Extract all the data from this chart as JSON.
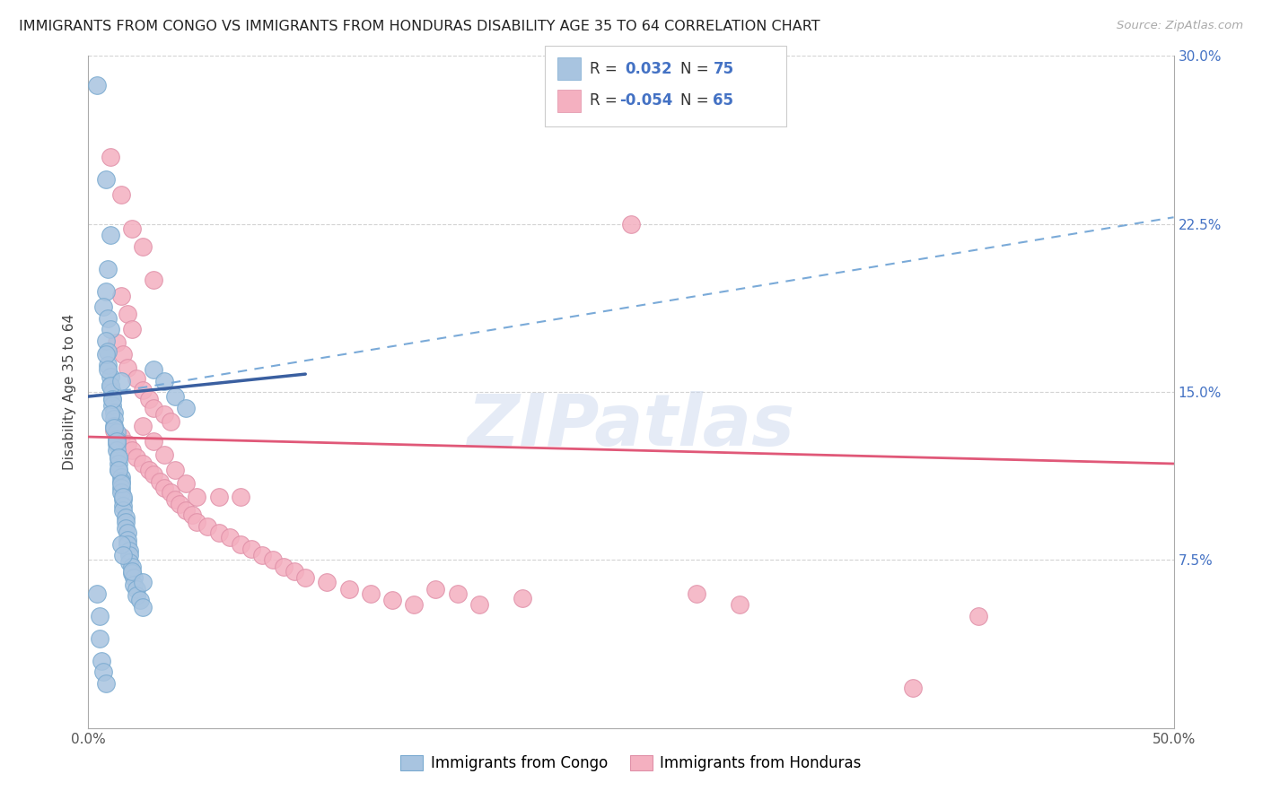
{
  "title": "IMMIGRANTS FROM CONGO VS IMMIGRANTS FROM HONDURAS DISABILITY AGE 35 TO 64 CORRELATION CHART",
  "source": "Source: ZipAtlas.com",
  "ylabel": "Disability Age 35 to 64",
  "xlim": [
    0.0,
    0.5
  ],
  "ylim": [
    0.0,
    0.3
  ],
  "xticks": [
    0.0,
    0.1,
    0.2,
    0.3,
    0.4,
    0.5
  ],
  "yticks": [
    0.0,
    0.075,
    0.15,
    0.225,
    0.3
  ],
  "xticklabels": [
    "0.0%",
    "",
    "",
    "",
    "",
    "50.0%"
  ],
  "yticklabels_right": [
    "",
    "7.5%",
    "15.0%",
    "22.5%",
    "30.0%"
  ],
  "congo_color": "#a8c4e0",
  "congo_line_color": "#3a5fa0",
  "congo_edge_color": "#7aaad0",
  "honduras_color": "#f4b0c0",
  "honduras_line_color": "#e05878",
  "honduras_edge_color": "#e090a8",
  "R_congo": "0.032",
  "N_congo": "75",
  "R_honduras": "-0.054",
  "N_honduras": "65",
  "legend_color": "#4472c4",
  "background_color": "#ffffff",
  "grid_color": "#c8c8c8",
  "congo_line": [
    [
      0.0,
      0.148
    ],
    [
      0.1,
      0.158
    ]
  ],
  "honduras_line": [
    [
      0.0,
      0.13
    ],
    [
      0.5,
      0.118
    ]
  ],
  "dashed_line": [
    [
      0.0,
      0.148
    ],
    [
      0.5,
      0.228
    ]
  ],
  "congo_points": [
    [
      0.004,
      0.287
    ],
    [
      0.008,
      0.245
    ],
    [
      0.01,
      0.22
    ],
    [
      0.009,
      0.205
    ],
    [
      0.008,
      0.195
    ],
    [
      0.007,
      0.188
    ],
    [
      0.009,
      0.183
    ],
    [
      0.01,
      0.178
    ],
    [
      0.008,
      0.173
    ],
    [
      0.009,
      0.168
    ],
    [
      0.009,
      0.162
    ],
    [
      0.01,
      0.157
    ],
    [
      0.01,
      0.153
    ],
    [
      0.011,
      0.15
    ],
    [
      0.011,
      0.147
    ],
    [
      0.011,
      0.144
    ],
    [
      0.012,
      0.141
    ],
    [
      0.012,
      0.138
    ],
    [
      0.012,
      0.135
    ],
    [
      0.013,
      0.132
    ],
    [
      0.013,
      0.129
    ],
    [
      0.013,
      0.127
    ],
    [
      0.013,
      0.124
    ],
    [
      0.014,
      0.121
    ],
    [
      0.014,
      0.118
    ],
    [
      0.014,
      0.115
    ],
    [
      0.015,
      0.112
    ],
    [
      0.015,
      0.11
    ],
    [
      0.015,
      0.107
    ],
    [
      0.015,
      0.105
    ],
    [
      0.016,
      0.102
    ],
    [
      0.016,
      0.099
    ],
    [
      0.016,
      0.097
    ],
    [
      0.017,
      0.094
    ],
    [
      0.017,
      0.092
    ],
    [
      0.017,
      0.089
    ],
    [
      0.018,
      0.087
    ],
    [
      0.018,
      0.084
    ],
    [
      0.018,
      0.082
    ],
    [
      0.019,
      0.079
    ],
    [
      0.019,
      0.077
    ],
    [
      0.019,
      0.074
    ],
    [
      0.02,
      0.072
    ],
    [
      0.02,
      0.069
    ],
    [
      0.021,
      0.067
    ],
    [
      0.021,
      0.064
    ],
    [
      0.022,
      0.062
    ],
    [
      0.022,
      0.059
    ],
    [
      0.024,
      0.057
    ],
    [
      0.025,
      0.054
    ],
    [
      0.008,
      0.167
    ],
    [
      0.009,
      0.16
    ],
    [
      0.01,
      0.153
    ],
    [
      0.011,
      0.147
    ],
    [
      0.01,
      0.14
    ],
    [
      0.012,
      0.134
    ],
    [
      0.013,
      0.128
    ],
    [
      0.014,
      0.121
    ],
    [
      0.014,
      0.115
    ],
    [
      0.015,
      0.109
    ],
    [
      0.016,
      0.103
    ],
    [
      0.004,
      0.06
    ],
    [
      0.005,
      0.05
    ],
    [
      0.005,
      0.04
    ],
    [
      0.006,
      0.03
    ],
    [
      0.007,
      0.025
    ],
    [
      0.008,
      0.02
    ],
    [
      0.015,
      0.082
    ],
    [
      0.016,
      0.077
    ],
    [
      0.02,
      0.07
    ],
    [
      0.025,
      0.065
    ],
    [
      0.03,
      0.16
    ],
    [
      0.035,
      0.155
    ],
    [
      0.04,
      0.148
    ],
    [
      0.045,
      0.143
    ],
    [
      0.015,
      0.155
    ]
  ],
  "honduras_points": [
    [
      0.01,
      0.255
    ],
    [
      0.015,
      0.238
    ],
    [
      0.02,
      0.223
    ],
    [
      0.025,
      0.215
    ],
    [
      0.03,
      0.2
    ],
    [
      0.015,
      0.193
    ],
    [
      0.018,
      0.185
    ],
    [
      0.02,
      0.178
    ],
    [
      0.013,
      0.172
    ],
    [
      0.016,
      0.167
    ],
    [
      0.018,
      0.161
    ],
    [
      0.022,
      0.156
    ],
    [
      0.025,
      0.151
    ],
    [
      0.028,
      0.147
    ],
    [
      0.03,
      0.143
    ],
    [
      0.035,
      0.14
    ],
    [
      0.038,
      0.137
    ],
    [
      0.012,
      0.133
    ],
    [
      0.015,
      0.13
    ],
    [
      0.018,
      0.127
    ],
    [
      0.02,
      0.124
    ],
    [
      0.022,
      0.121
    ],
    [
      0.025,
      0.118
    ],
    [
      0.028,
      0.115
    ],
    [
      0.03,
      0.113
    ],
    [
      0.033,
      0.11
    ],
    [
      0.035,
      0.107
    ],
    [
      0.038,
      0.105
    ],
    [
      0.04,
      0.102
    ],
    [
      0.042,
      0.1
    ],
    [
      0.045,
      0.097
    ],
    [
      0.048,
      0.095
    ],
    [
      0.05,
      0.092
    ],
    [
      0.055,
      0.09
    ],
    [
      0.06,
      0.087
    ],
    [
      0.065,
      0.085
    ],
    [
      0.07,
      0.082
    ],
    [
      0.075,
      0.08
    ],
    [
      0.08,
      0.077
    ],
    [
      0.085,
      0.075
    ],
    [
      0.09,
      0.072
    ],
    [
      0.095,
      0.07
    ],
    [
      0.1,
      0.067
    ],
    [
      0.11,
      0.065
    ],
    [
      0.12,
      0.062
    ],
    [
      0.13,
      0.06
    ],
    [
      0.14,
      0.057
    ],
    [
      0.15,
      0.055
    ],
    [
      0.025,
      0.135
    ],
    [
      0.03,
      0.128
    ],
    [
      0.035,
      0.122
    ],
    [
      0.04,
      0.115
    ],
    [
      0.045,
      0.109
    ],
    [
      0.05,
      0.103
    ],
    [
      0.06,
      0.103
    ],
    [
      0.07,
      0.103
    ],
    [
      0.17,
      0.06
    ],
    [
      0.2,
      0.058
    ],
    [
      0.28,
      0.06
    ],
    [
      0.3,
      0.055
    ],
    [
      0.25,
      0.225
    ],
    [
      0.18,
      0.055
    ],
    [
      0.16,
      0.062
    ],
    [
      0.41,
      0.05
    ],
    [
      0.38,
      0.018
    ]
  ]
}
